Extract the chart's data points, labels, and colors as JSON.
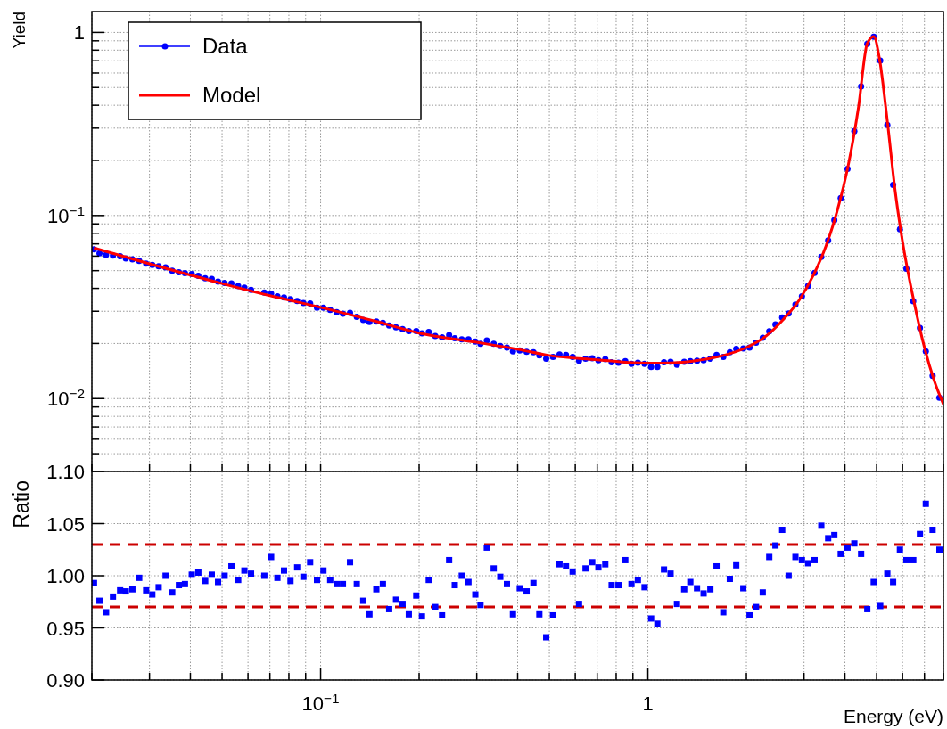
{
  "chart_data": [
    {
      "type": "scatter",
      "ylabel": "Yield",
      "log": "xy",
      "grid": true,
      "legend": "top left",
      "tick_labels": "y",
      "xlim": [
        0.02,
        8
      ],
      "ylim": [
        0.004,
        1.3
      ],
      "xticks": [
        {
          "value": 0.02,
          "label": null
        },
        {
          "value": 0.03,
          "label": null
        },
        {
          "value": 0.04,
          "label": null
        },
        {
          "value": 0.05,
          "label": null
        },
        {
          "value": 0.06,
          "label": null
        },
        {
          "value": 0.07,
          "label": null
        },
        {
          "value": 0.08,
          "label": null
        },
        {
          "value": 0.09,
          "label": null
        },
        {
          "value": 0.1,
          "label": null
        },
        {
          "value": 0.2,
          "label": null
        },
        {
          "value": 0.3,
          "label": null
        },
        {
          "value": 0.4,
          "label": null
        },
        {
          "value": 0.5,
          "label": null
        },
        {
          "value": 0.6,
          "label": null
        },
        {
          "value": 0.7,
          "label": null
        },
        {
          "value": 0.8,
          "label": null
        },
        {
          "value": 0.9,
          "label": null
        },
        {
          "value": 1,
          "label": null
        },
        {
          "value": 2,
          "label": null
        },
        {
          "value": 3,
          "label": null
        },
        {
          "value": 4,
          "label": null
        },
        {
          "value": 5,
          "label": null
        },
        {
          "value": 6,
          "label": null
        },
        {
          "value": 7,
          "label": null
        },
        {
          "value": 8,
          "label": null
        }
      ],
      "yticks": [
        {
          "value": 0.004,
          "label": null
        },
        {
          "value": 0.005,
          "label": null
        },
        {
          "value": 0.006,
          "label": null
        },
        {
          "value": 0.007,
          "label": null
        },
        {
          "value": 0.008,
          "label": null
        },
        {
          "value": 0.009,
          "label": null
        },
        {
          "value": 0.01,
          "label": "10$^{−2}$"
        },
        {
          "value": 0.02,
          "label": null
        },
        {
          "value": 0.03,
          "label": null
        },
        {
          "value": 0.04,
          "label": null
        },
        {
          "value": 0.05,
          "label": null
        },
        {
          "value": 0.06,
          "label": null
        },
        {
          "value": 0.07,
          "label": null
        },
        {
          "value": 0.08,
          "label": null
        },
        {
          "value": 0.09,
          "label": null
        },
        {
          "value": 0.1,
          "label": "10$^{−1}$"
        },
        {
          "value": 0.2,
          "label": null
        },
        {
          "value": 0.3,
          "label": null
        },
        {
          "value": 0.4,
          "label": null
        },
        {
          "value": 0.5,
          "label": null
        },
        {
          "value": 0.6,
          "label": null
        },
        {
          "value": 0.7,
          "label": null
        },
        {
          "value": 0.8,
          "label": null
        },
        {
          "value": 0.9,
          "label": null
        },
        1
      ],
      "x": [
        0.0203,
        0.0211,
        0.0221,
        0.0232,
        0.0244,
        0.0254,
        0.0266,
        0.0279,
        0.0293,
        0.0306,
        0.032,
        0.0336,
        0.0352,
        0.0369,
        0.0385,
        0.0404,
        0.0423,
        0.0444,
        0.0465,
        0.0486,
        0.0509,
        0.0534,
        0.056,
        0.0585,
        0.0613,
        0.0673,
        0.0706,
        0.0738,
        0.0773,
        0.0809,
        0.0848,
        0.0886,
        0.0929,
        0.0975,
        0.102,
        0.107,
        0.112,
        0.117,
        0.123,
        0.129,
        0.135,
        0.141,
        0.148,
        0.155,
        0.162,
        0.17,
        0.178,
        0.186,
        0.196,
        0.204,
        0.214,
        0.224,
        0.235,
        0.247,
        0.257,
        0.27,
        0.283,
        0.297,
        0.308,
        0.322,
        0.338,
        0.354,
        0.371,
        0.387,
        0.406,
        0.426,
        0.447,
        0.466,
        0.489,
        0.513,
        0.537,
        0.562,
        0.589,
        0.616,
        0.645,
        0.676,
        0.706,
        0.741,
        0.775,
        0.813,
        0.853,
        0.891,
        0.932,
        0.977,
        1.023,
        1.069,
        1.12,
        1.173,
        1.227,
        1.291,
        1.348,
        1.413,
        1.48,
        1.552,
        1.621,
        1.7,
        1.78,
        1.862,
        1.957,
        2.045,
        2.14,
        2.244,
        2.349,
        2.453,
        2.573,
        2.692,
        2.824,
        2.956,
        3.088,
        3.231,
        3.388,
        3.555,
        3.713,
        3.884,
        4.074,
        4.274,
        4.483,
        4.682,
        4.899,
        5.128,
        5.391,
        5.615,
        5.89,
        6.166,
        6.47,
        6.781,
        7.067,
        7.413,
        7.777
      ],
      "series": [
        {
          "name": "Data",
          "marker": "circle",
          "color": "#0000ff",
          "values": [
            0.0654,
            0.0622,
            0.061,
            0.0604,
            0.0599,
            0.0582,
            0.0576,
            0.0565,
            0.0546,
            0.0538,
            0.0529,
            0.0521,
            0.05,
            0.049,
            0.0484,
            0.0479,
            0.0468,
            0.0454,
            0.045,
            0.0436,
            0.0428,
            0.0426,
            0.0412,
            0.0404,
            0.0393,
            0.038,
            0.0374,
            0.0362,
            0.0357,
            0.0349,
            0.0341,
            0.0333,
            0.0331,
            0.0314,
            0.0314,
            0.0305,
            0.0297,
            0.0291,
            0.0294,
            0.028,
            0.0269,
            0.0262,
            0.0264,
            0.0259,
            0.0251,
            0.0245,
            0.024,
            0.0234,
            0.0234,
            0.0227,
            0.0231,
            0.022,
            0.0216,
            0.0222,
            0.0214,
            0.0211,
            0.0211,
            0.0205,
            0.0199,
            0.0208,
            0.0199,
            0.0194,
            0.019,
            0.0181,
            0.0183,
            0.018,
            0.0179,
            0.0172,
            0.0165,
            0.0169,
            0.0174,
            0.0173,
            0.0169,
            0.0161,
            0.0165,
            0.0166,
            0.0162,
            0.0164,
            0.0158,
            0.0157,
            0.016,
            0.0155,
            0.0157,
            0.0155,
            0.0149,
            0.0149,
            0.0158,
            0.0159,
            0.0153,
            0.0159,
            0.016,
            0.0161,
            0.0162,
            0.0165,
            0.0173,
            0.0169,
            0.0179,
            0.0187,
            0.0188,
            0.019,
            0.0202,
            0.0215,
            0.0233,
            0.0254,
            0.0277,
            0.0292,
            0.0326,
            0.0362,
            0.0413,
            0.0486,
            0.0594,
            0.0731,
            0.0944,
            0.1245,
            0.18,
            0.289,
            0.507,
            0.867,
            0.948,
            0.701,
            0.312,
            0.147,
            0.0841,
            0.0513,
            0.034,
            0.0243,
            0.0181,
            0.0133,
            0.0101
          ]
        },
        {
          "name": "Model",
          "type": "line",
          "color": "#ff0000",
          "x": [
            0.0203,
            0.03,
            0.05,
            0.07,
            0.1,
            0.15,
            0.2,
            0.3,
            0.4,
            0.5,
            0.7,
            0.9,
            1.1,
            1.4,
            1.7,
            2,
            2.3,
            2.6,
            2.9,
            3.2,
            3.5,
            3.8,
            4.1,
            4.4,
            4.68,
            4.9,
            5.1,
            5.4,
            5.7,
            6,
            6.5,
            7,
            7.5,
            8
          ],
          "values": [
            0.0665,
            0.0545,
            0.0425,
            0.0365,
            0.0315,
            0.0262,
            0.0228,
            0.0203,
            0.0186,
            0.0172,
            0.0163,
            0.0157,
            0.0156,
            0.0161,
            0.0172,
            0.019,
            0.022,
            0.0272,
            0.0345,
            0.047,
            0.068,
            0.108,
            0.19,
            0.39,
            0.87,
            0.95,
            0.72,
            0.32,
            0.135,
            0.072,
            0.034,
            0.019,
            0.0125,
            0.0093
          ]
        }
      ]
    },
    {
      "type": "scatter",
      "xlabel": "Energy (eV)",
      "ylabel": "Ratio",
      "log": "x",
      "grid": true,
      "xlim": [
        0.02,
        8
      ],
      "ylim": [
        0.9,
        1.1
      ],
      "xticks": [
        {
          "value": 0.02,
          "label": null
        },
        {
          "value": 0.03,
          "label": null
        },
        {
          "value": 0.04,
          "label": null
        },
        {
          "value": 0.05,
          "label": null
        },
        {
          "value": 0.06,
          "label": null
        },
        {
          "value": 0.07,
          "label": null
        },
        {
          "value": 0.08,
          "label": null
        },
        {
          "value": 0.09,
          "label": null
        },
        {
          "value": 0.1,
          "label": "10$^{−1}$"
        },
        {
          "value": 0.2,
          "label": null
        },
        {
          "value": 0.3,
          "label": null
        },
        {
          "value": 0.4,
          "label": null
        },
        {
          "value": 0.5,
          "label": null
        },
        {
          "value": 0.6,
          "label": null
        },
        {
          "value": 0.7,
          "label": null
        },
        {
          "value": 0.8,
          "label": null
        },
        {
          "value": 0.9,
          "label": null
        },
        1,
        {
          "value": 2,
          "label": null
        },
        {
          "value": 3,
          "label": null
        },
        {
          "value": 4,
          "label": null
        },
        {
          "value": 5,
          "label": null
        },
        {
          "value": 6,
          "label": null
        },
        {
          "value": 7,
          "label": null
        },
        {
          "value": 8,
          "label": null
        }
      ],
      "yticks": [
        {
          "value": 0.9,
          "label": "0.90"
        },
        {
          "value": 0.95,
          "label": "0.95"
        },
        {
          "value": 1,
          "label": "1.00"
        },
        {
          "value": 1.05,
          "label": "1.05"
        },
        {
          "value": 1.1,
          "label": "1.10"
        }
      ],
      "ref_lines": [
        {
          "axis": "y",
          "value": 1.03,
          "color": "#cc0000",
          "line_style": "dashed"
        },
        {
          "axis": "y",
          "value": 0.97,
          "color": "#cc0000",
          "line_style": "dashed"
        }
      ],
      "x": [
        0.0203,
        0.0211,
        0.0221,
        0.0232,
        0.0244,
        0.0254,
        0.0266,
        0.0279,
        0.0293,
        0.0306,
        0.032,
        0.0336,
        0.0352,
        0.0369,
        0.0385,
        0.0404,
        0.0423,
        0.0444,
        0.0465,
        0.0486,
        0.0509,
        0.0534,
        0.056,
        0.0585,
        0.0613,
        0.0673,
        0.0706,
        0.0738,
        0.0773,
        0.0809,
        0.0848,
        0.0886,
        0.0929,
        0.0975,
        0.102,
        0.107,
        0.112,
        0.117,
        0.123,
        0.129,
        0.135,
        0.141,
        0.148,
        0.155,
        0.162,
        0.17,
        0.178,
        0.186,
        0.196,
        0.204,
        0.214,
        0.224,
        0.235,
        0.247,
        0.257,
        0.27,
        0.283,
        0.297,
        0.308,
        0.322,
        0.338,
        0.354,
        0.371,
        0.387,
        0.406,
        0.426,
        0.447,
        0.466,
        0.489,
        0.513,
        0.537,
        0.562,
        0.589,
        0.616,
        0.645,
        0.676,
        0.706,
        0.741,
        0.775,
        0.813,
        0.853,
        0.891,
        0.932,
        0.977,
        1.023,
        1.069,
        1.12,
        1.173,
        1.227,
        1.291,
        1.348,
        1.413,
        1.48,
        1.552,
        1.621,
        1.7,
        1.78,
        1.862,
        1.957,
        2.045,
        2.14,
        2.244,
        2.349,
        2.453,
        2.573,
        2.692,
        2.824,
        2.956,
        3.088,
        3.231,
        3.388,
        3.555,
        3.713,
        3.884,
        4.074,
        4.274,
        4.483,
        4.682,
        4.899,
        5.128,
        5.391,
        5.615,
        5.89,
        6.166,
        6.47,
        6.781,
        7.067,
        7.413,
        7.777
      ],
      "series": [
        {
          "marker": "square",
          "color": "#0000ff",
          "values": [
            0.993,
            0.976,
            0.965,
            0.98,
            0.986,
            0.985,
            0.987,
            0.998,
            0.986,
            0.982,
            0.989,
            1,
            0.984,
            0.991,
            0.992,
            1.001,
            1.003,
            0.995,
            1.001,
            0.994,
            1,
            1.009,
            0.996,
            1.005,
            1.002,
            1,
            1.018,
            0.998,
            1.005,
            0.995,
            1.008,
            0.999,
            1.013,
            0.996,
            1.005,
            0.996,
            0.992,
            0.992,
            1.013,
            0.992,
            0.976,
            0.963,
            0.987,
            0.992,
            0.968,
            0.977,
            0.973,
            0.963,
            0.981,
            0.961,
            0.996,
            0.97,
            0.962,
            1.015,
            0.991,
            1,
            0.994,
            0.982,
            0.972,
            1.027,
            1.007,
            0.999,
            0.992,
            0.963,
            0.988,
            0.985,
            0.993,
            0.963,
            0.941,
            0.962,
            1.011,
            1.009,
            1.004,
            0.973,
            1.007,
            1.013,
            1.008,
            1.011,
            0.991,
            0.991,
            1.015,
            0.992,
            0.996,
            0.989,
            0.959,
            0.954,
            1.006,
            1.002,
            0.973,
            0.987,
            0.994,
            0.988,
            0.983,
            0.987,
            1.009,
            0.965,
            0.997,
            1.01,
            0.988,
            0.962,
            0.97,
            0.984,
            1.018,
            1.029,
            1.044,
            1,
            1.018,
            1.015,
            1.012,
            1.015,
            1.048,
            1.036,
            1.039,
            1.021,
            1.027,
            1.031,
            1.021,
            0.968,
            0.994,
            0.971,
            1.002,
            0.994,
            1.025,
            1.015,
            1.015,
            1.04,
            1.069,
            1.044,
            1.025
          ]
        }
      ]
    }
  ]
}
